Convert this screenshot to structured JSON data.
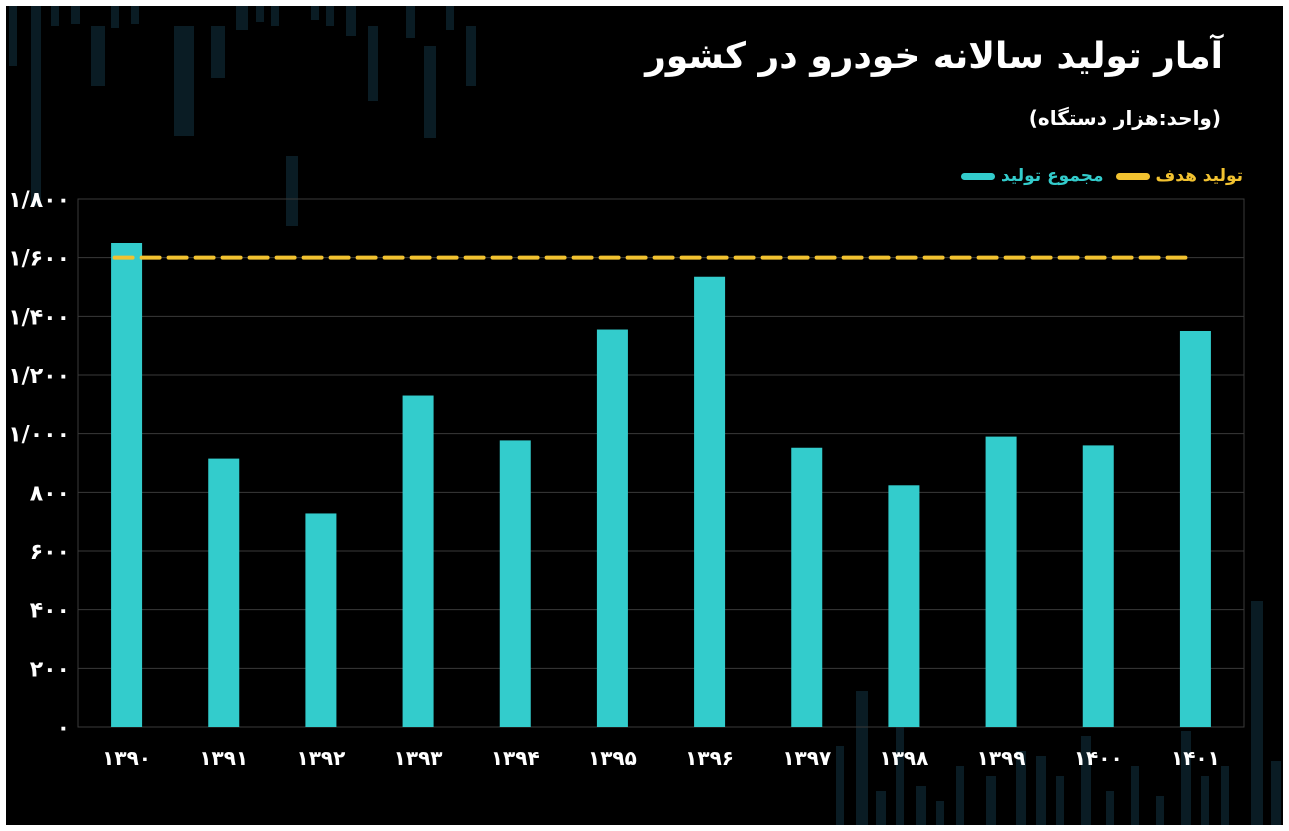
{
  "colors": {
    "bar": "#33CCCC",
    "target": "#F2C230",
    "grid": "#3A3A3A",
    "text": "#FFFFFF",
    "background": "#000000"
  },
  "chart_data": {
    "type": "bar",
    "title": "آمار تولید سالانه خودرو در کشور",
    "subtitle": "(واحد:هزار دستگاه)",
    "categories": [
      "۱۳۹۰",
      "۱۳۹۱",
      "۱۳۹۲",
      "۱۳۹۳",
      "۱۳۹۴",
      "۱۳۹۵",
      "۱۳۹۶",
      "۱۳۹۷",
      "۱۳۹۸",
      "۱۳۹۹",
      "۱۴۰۰",
      "۱۴۰۱"
    ],
    "series": [
      {
        "name": "مجموع تولید",
        "type": "bar",
        "values": [
          1650,
          915,
          728,
          1130,
          977,
          1355,
          1535,
          952,
          824,
          990,
          960,
          1350
        ]
      },
      {
        "name": "تولید هدف",
        "type": "line-dashed",
        "values": [
          1600,
          1600,
          1600,
          1600,
          1600,
          1600,
          1600,
          1600,
          1600,
          1600,
          1600,
          1600
        ]
      }
    ],
    "yticks": [
      0,
      200,
      400,
      600,
      800,
      1000,
      1200,
      1400,
      1600,
      1800
    ],
    "ytick_labels": [
      "۰",
      "۲۰۰",
      "۴۰۰",
      "۶۰۰",
      "۸۰۰",
      "۱/۰۰۰",
      "۱/۲۰۰",
      "۱/۴۰۰",
      "۱/۶۰۰",
      "۱/۸۰۰"
    ],
    "ylim": [
      0,
      1800
    ],
    "grid": true,
    "legend_position": "top-right"
  }
}
